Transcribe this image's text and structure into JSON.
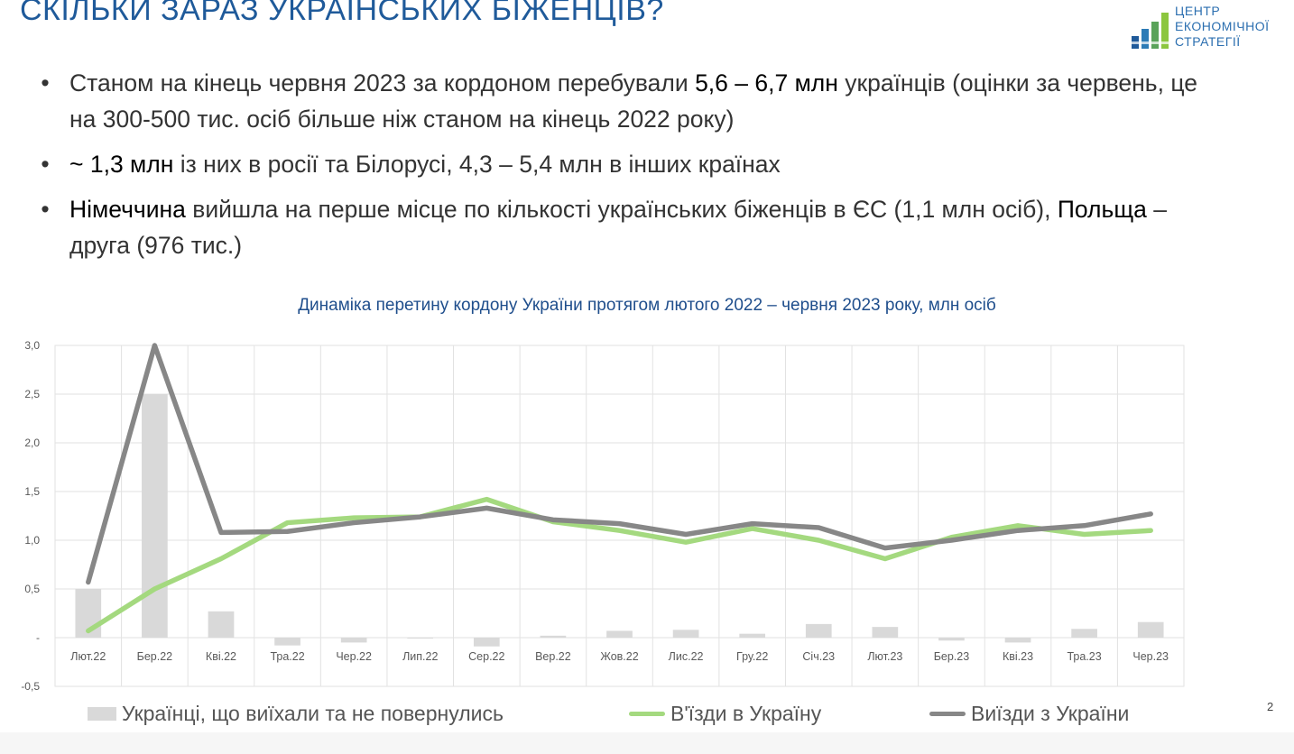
{
  "slide": {
    "title": "СКІЛЬКИ ЗАРАЗ УКРАЇНСЬКИХ БІЖЕНЦІВ?",
    "page_number": "2"
  },
  "logo": {
    "line1": "ЦЕНТР",
    "line2": "ЕКОНОМІЧНОЇ",
    "line3": "СТРАТЕГІЇ",
    "colors": [
      "#1f5a9a",
      "#2c7bb6",
      "#5aa35a",
      "#8cc63f"
    ]
  },
  "bullets": [
    {
      "pre": "Станом на кінець червня 2023 за кордоном перебували ",
      "bold": "5,6 – 6,7 млн",
      "post": " українців (оцінки за червень, це на 300-500 тис. осіб більше ніж станом на кінець 2022 року)"
    },
    {
      "pre": "",
      "bold": "~ 1,3 млн",
      "post": " із них в росії та Білорусі, 4,3 – 5,4 млн в інших країнах"
    },
    {
      "pre": "",
      "bold": "Німеччина",
      "post": " вийшла на перше місце по кількості українських біженців в ЄС (1,1 млн осіб), ",
      "bold2": "Польща",
      "post2": " – друга (976 тис.)"
    }
  ],
  "chart_data": {
    "type": "bar",
    "title": "Динаміка перетину кордону України протягом лютого 2022 – червня 2023 року, млн осіб",
    "categories": [
      "Лют.22",
      "Бер.22",
      "Кві.22",
      "Тра.22",
      "Чер.22",
      "Лип.22",
      "Сер.22",
      "Вер.22",
      "Жов.22",
      "Лис.22",
      "Гру.22",
      "Січ.23",
      "Лют.23",
      "Бер.23",
      "Кві.23",
      "Тра.23",
      "Чер.23"
    ],
    "ylim": [
      -0.5,
      3.0
    ],
    "yticks": [
      "-0,5",
      "-",
      "0,5",
      "1,0",
      "1,5",
      "2,0",
      "2,5",
      "3,0"
    ],
    "grid": true,
    "legend_position": "bottom",
    "series": [
      {
        "name": "Українці, що виїхали та не повернулись",
        "kind": "bar",
        "color": "#d9d9d9",
        "values": [
          0.5,
          2.5,
          0.27,
          -0.08,
          -0.05,
          0.0,
          -0.09,
          0.02,
          0.07,
          0.08,
          0.04,
          0.14,
          0.11,
          -0.03,
          -0.05,
          0.09,
          0.16
        ]
      },
      {
        "name": "В'їзди в Україну",
        "kind": "line",
        "color": "#a4d97f",
        "values": [
          0.07,
          0.5,
          0.81,
          1.18,
          1.23,
          1.24,
          1.42,
          1.19,
          1.1,
          0.98,
          1.12,
          1.0,
          0.81,
          1.03,
          1.15,
          1.06,
          1.1
        ]
      },
      {
        "name": "Виїзди з України",
        "kind": "line",
        "color": "#878787",
        "values": [
          0.57,
          3.0,
          1.08,
          1.09,
          1.18,
          1.24,
          1.33,
          1.21,
          1.17,
          1.06,
          1.17,
          1.13,
          0.92,
          1.0,
          1.1,
          1.15,
          1.27
        ]
      }
    ]
  }
}
